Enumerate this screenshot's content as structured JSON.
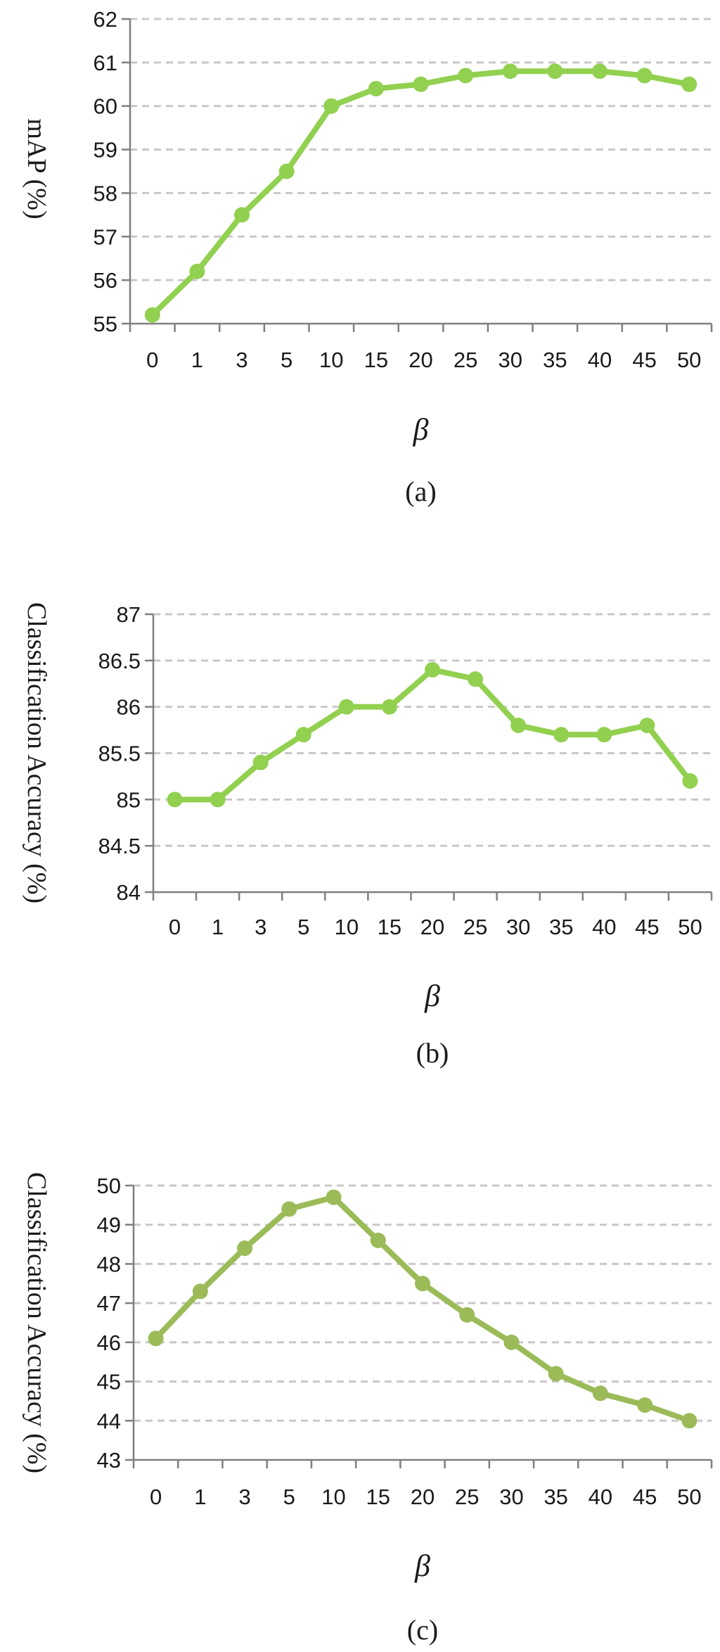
{
  "chart_data": [
    {
      "type": "line",
      "categories": [
        "0",
        "1",
        "3",
        "5",
        "10",
        "15",
        "20",
        "25",
        "30",
        "35",
        "40",
        "45",
        "50"
      ],
      "series": [
        {
          "values": [
            55.2,
            56.2,
            57.5,
            58.5,
            60.0,
            60.4,
            60.5,
            60.7,
            60.8,
            60.8,
            60.8,
            60.7,
            60.5
          ]
        }
      ],
      "xlabel": "β",
      "ylabel": "mAP (%)",
      "caption": "(a)",
      "ylim": [
        55,
        62
      ],
      "yticks": [
        55,
        56,
        57,
        58,
        59,
        60,
        61,
        62
      ],
      "grid": true,
      "color": "#92d050"
    },
    {
      "type": "line",
      "categories": [
        "0",
        "1",
        "3",
        "5",
        "10",
        "15",
        "20",
        "25",
        "30",
        "35",
        "40",
        "45",
        "50"
      ],
      "series": [
        {
          "values": [
            85.0,
            85.0,
            85.4,
            85.7,
            86.0,
            86.0,
            86.4,
            86.3,
            85.8,
            85.7,
            85.7,
            85.8,
            85.2
          ]
        }
      ],
      "xlabel": "β",
      "ylabel": "Classification Accuracy (%)",
      "caption": "(b)",
      "ylim": [
        84,
        87
      ],
      "yticks": [
        84,
        84.5,
        85,
        85.5,
        86,
        86.5,
        87
      ],
      "grid": true,
      "color": "#92d050"
    },
    {
      "type": "line",
      "categories": [
        "0",
        "1",
        "3",
        "5",
        "10",
        "15",
        "20",
        "25",
        "30",
        "35",
        "40",
        "45",
        "50"
      ],
      "series": [
        {
          "values": [
            46.1,
            47.3,
            48.4,
            49.4,
            49.7,
            48.6,
            47.5,
            46.7,
            46.0,
            45.2,
            44.7,
            44.4,
            44.0
          ]
        }
      ],
      "xlabel": "β",
      "ylabel": "Classification Accuracy (%)",
      "caption": "(c)",
      "ylim": [
        43,
        50
      ],
      "yticks": [
        43,
        44,
        45,
        46,
        47,
        48,
        49,
        50
      ],
      "grid": true,
      "color": "#9bbb59"
    }
  ]
}
